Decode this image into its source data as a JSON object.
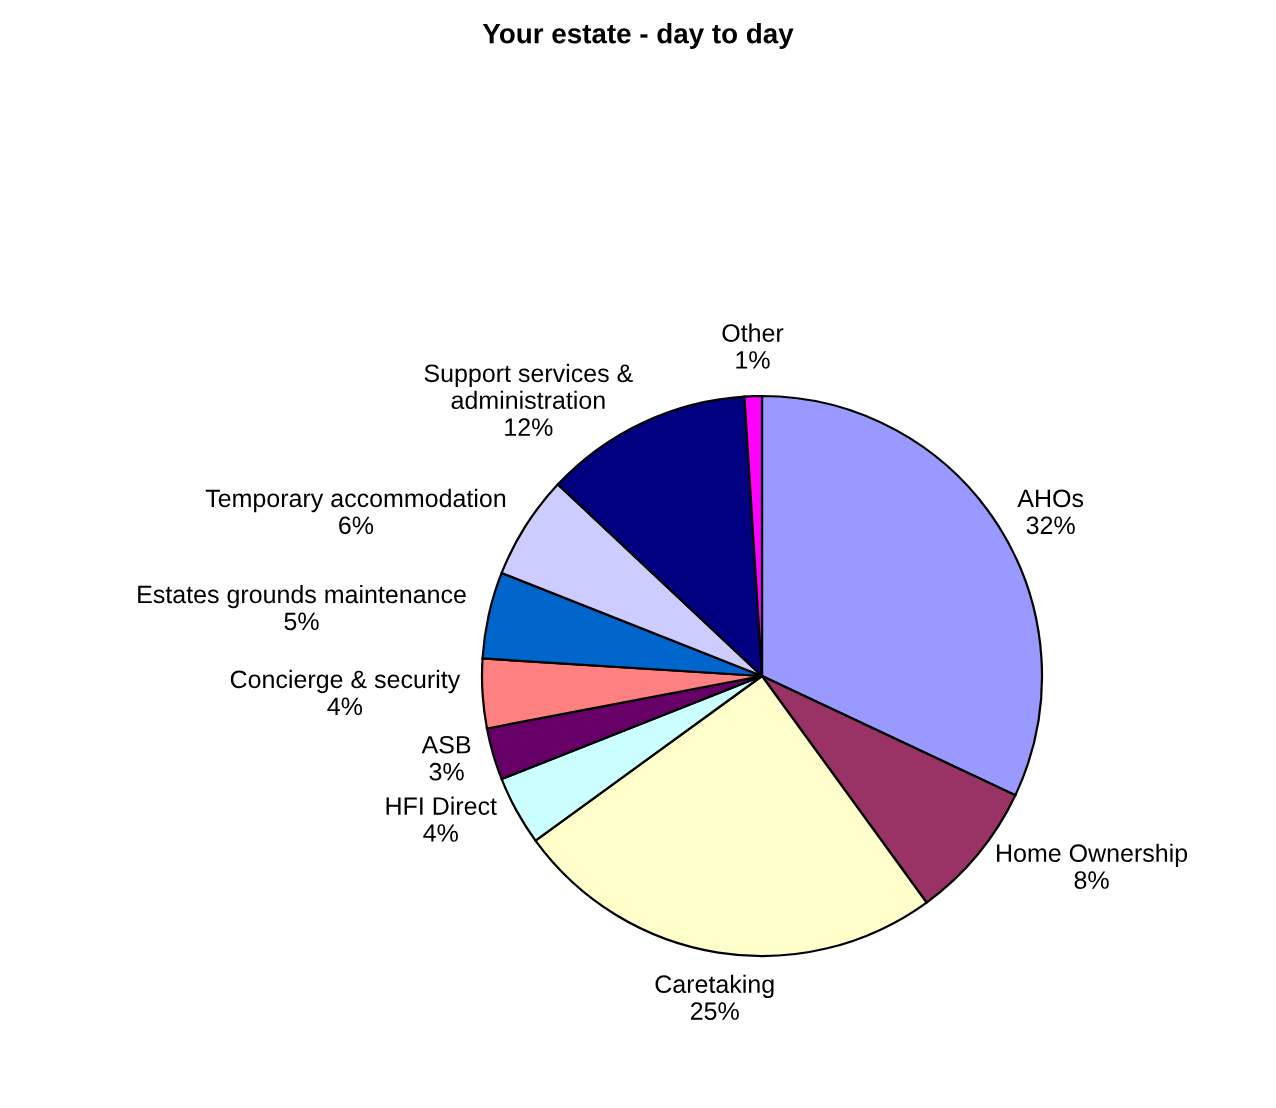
{
  "chart_data": {
    "type": "pie",
    "title": "Your estate - day to day",
    "categories": [
      "AHOs",
      "Home Ownership",
      "Caretaking",
      "HFI Direct",
      "ASB",
      "Concierge & security",
      "Estates grounds maintenance",
      "Temporary accommodation",
      "Support services &\nadministration",
      "Other"
    ],
    "values": [
      32,
      8,
      25,
      4,
      3,
      4,
      5,
      6,
      12,
      1
    ],
    "value_labels": [
      "32%",
      "8%",
      "25%",
      "4%",
      "3%",
      "4%",
      "5%",
      "6%",
      "12%",
      "1%"
    ],
    "colors": [
      "#9999ff",
      "#993366",
      "#ffffcc",
      "#ccffff",
      "#660066",
      "#ff8080",
      "#0066cc",
      "#ccccff",
      "#000080",
      "#ff00ff"
    ],
    "legend": false
  }
}
